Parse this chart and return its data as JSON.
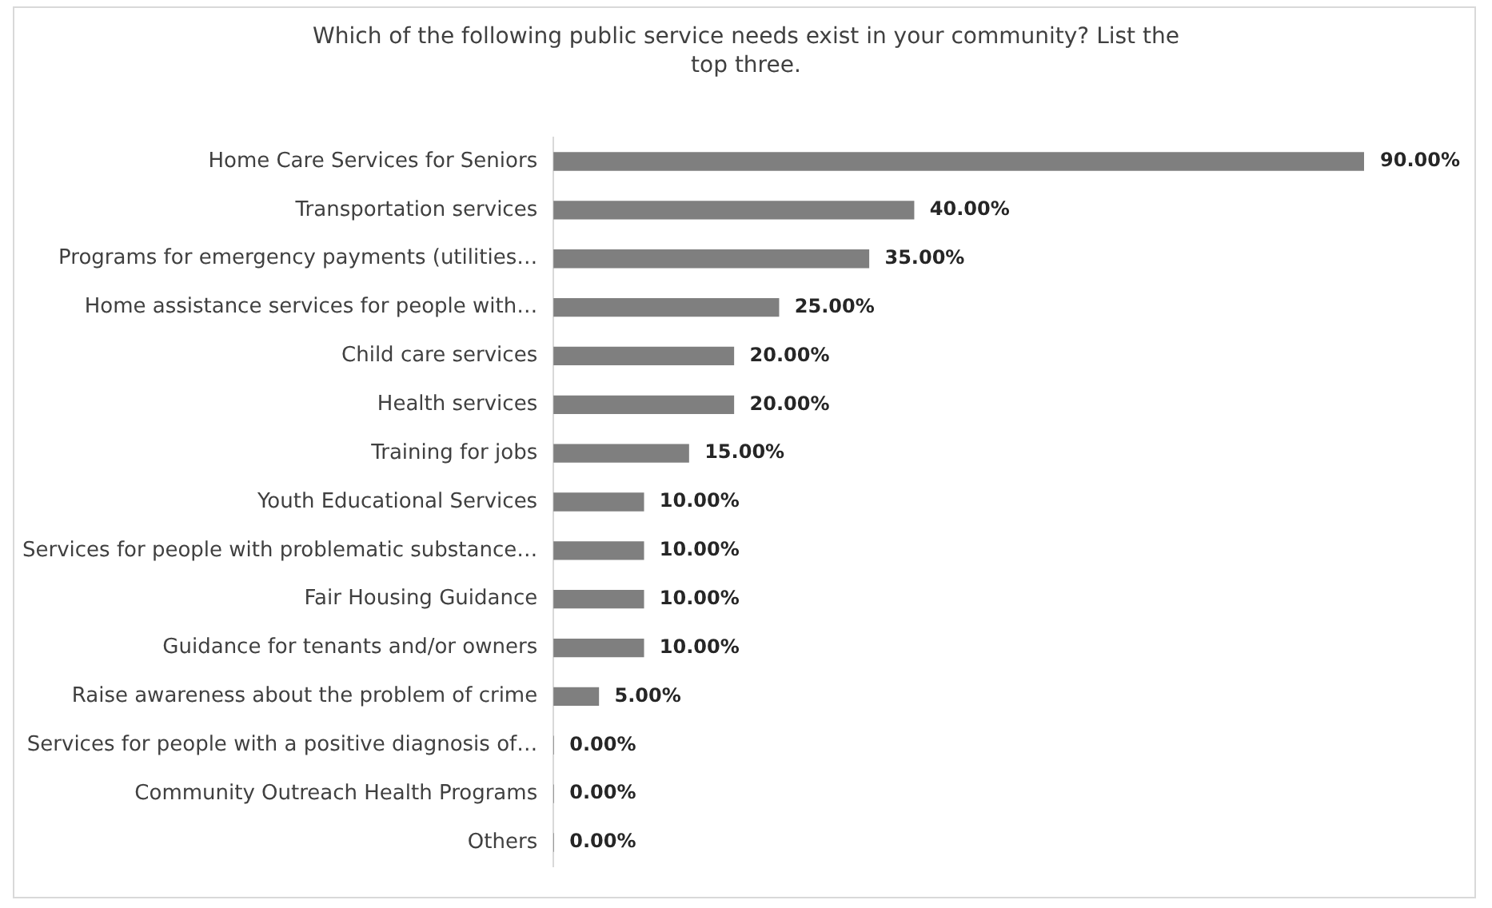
{
  "chart_data": {
    "type": "bar",
    "orientation": "horizontal",
    "title": "Which of the following public service needs exist in your community? List the top three.",
    "categories": [
      "Home Care Services for Seniors",
      "Transportation services",
      "Programs for emergency payments (utilities…",
      "Home assistance services for people with…",
      "Child care services",
      "Health services",
      "Training for jobs",
      "Youth Educational Services",
      "Services for people with problematic substance…",
      "Fair Housing Guidance",
      "Guidance for tenants and/or owners",
      "Raise awareness about the problem of crime",
      "Services for people with a positive diagnosis of…",
      "Community Outreach Health Programs",
      "Others"
    ],
    "values": [
      90,
      40,
      35,
      25,
      20,
      20,
      15,
      10,
      10,
      10,
      10,
      5,
      0,
      0,
      0
    ],
    "value_labels": [
      "90.00%",
      "40.00%",
      "35.00%",
      "25.00%",
      "20.00%",
      "20.00%",
      "15.00%",
      "10.00%",
      "10.00%",
      "10.00%",
      "10.00%",
      "5.00%",
      "0.00%",
      "0.00%",
      "0.00%"
    ],
    "color": "#7f7f7f"
  }
}
